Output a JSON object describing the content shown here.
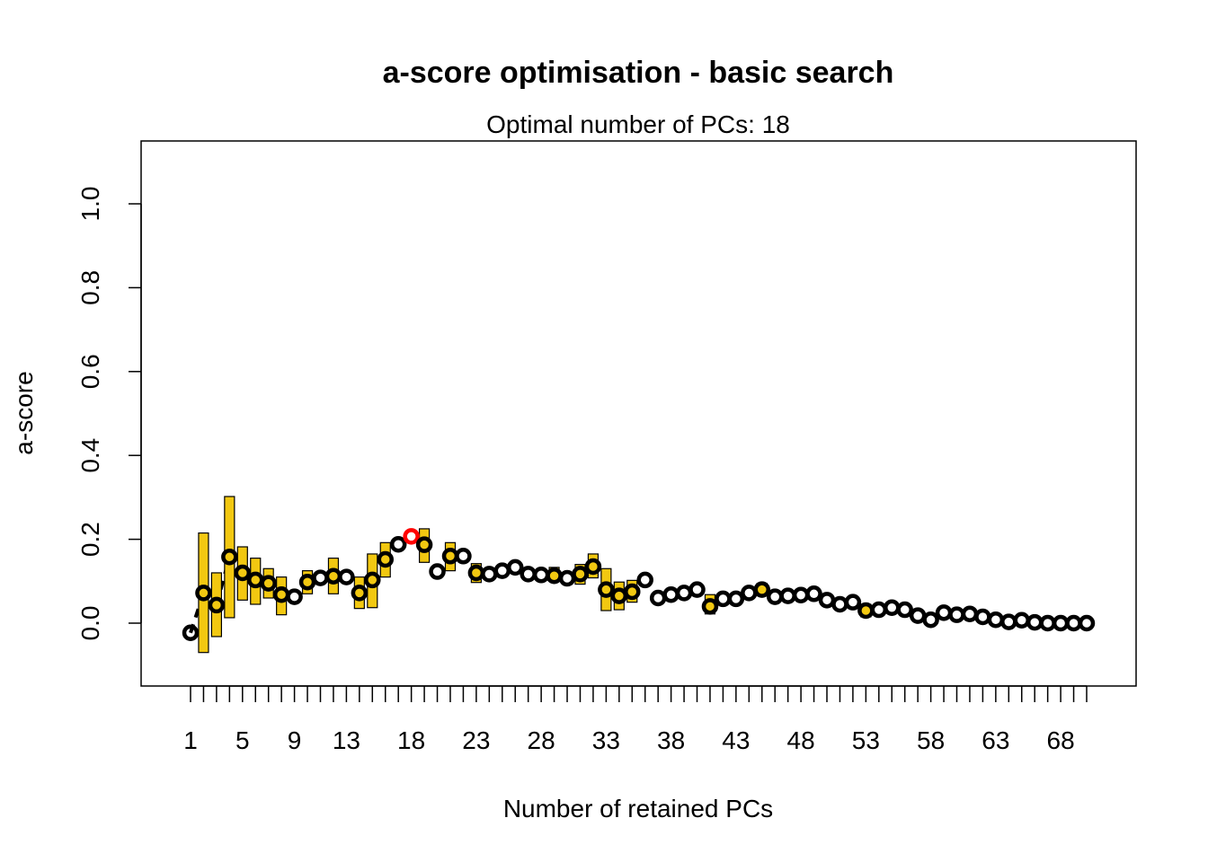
{
  "chart_data": {
    "type": "scatter",
    "title": "a-score optimisation - basic search",
    "subtitle": "Optimal number of PCs: 18",
    "xlabel": "Number of retained PCs",
    "ylabel": "a-score",
    "xlim": [
      1,
      70
    ],
    "ylim": [
      -0.14,
      1.15
    ],
    "x_tick_labels": [
      1,
      5,
      9,
      13,
      18,
      23,
      28,
      33,
      38,
      43,
      48,
      53,
      58,
      63,
      68
    ],
    "y_ticks": [
      0.0,
      0.2,
      0.4,
      0.6,
      0.8,
      1.0
    ],
    "y_tick_labels": [
      "0.0",
      "0.2",
      "0.4",
      "0.6",
      "0.8",
      "1.0"
    ],
    "grid": false,
    "highlight_x": 18,
    "colors": {
      "box_fill": "#F2C811",
      "point": "#000000",
      "highlight": "#FF0000"
    },
    "series": [
      {
        "x": [
          1,
          2,
          3,
          4,
          5,
          6,
          7,
          8,
          9,
          10,
          11,
          12,
          13,
          14,
          15,
          16,
          17,
          18,
          19,
          20,
          21,
          22,
          23,
          24,
          25,
          26,
          27,
          28,
          29,
          30,
          31,
          32,
          33,
          34,
          35,
          36,
          37,
          38,
          39,
          40,
          41,
          42,
          43,
          44,
          45,
          46,
          47,
          48,
          49,
          50,
          51,
          52,
          53,
          54,
          55,
          56,
          57,
          58,
          59,
          60,
          61,
          62,
          63,
          64,
          65,
          66,
          67,
          68,
          69,
          70
        ],
        "values": [
          -0.023,
          0.072,
          0.043,
          0.158,
          0.12,
          0.103,
          0.095,
          0.068,
          0.063,
          0.098,
          0.108,
          0.112,
          0.11,
          0.072,
          0.103,
          0.152,
          0.188,
          0.207,
          0.187,
          0.123,
          0.16,
          0.16,
          0.12,
          0.117,
          0.125,
          0.133,
          0.117,
          0.115,
          0.113,
          0.107,
          0.117,
          0.135,
          0.08,
          0.065,
          0.075,
          0.103,
          0.06,
          0.068,
          0.072,
          0.08,
          0.04,
          0.058,
          0.058,
          0.072,
          0.08,
          0.063,
          0.065,
          0.067,
          0.07,
          0.055,
          0.045,
          0.05,
          0.03,
          0.032,
          0.037,
          0.032,
          0.018,
          0.008,
          0.025,
          0.02,
          0.022,
          0.015,
          0.008,
          0.003,
          0.007,
          0.002,
          0.0,
          0.0,
          0.0,
          0.0
        ],
        "box_low": [
          null,
          -0.07,
          -0.032,
          0.013,
          0.055,
          0.045,
          0.06,
          0.02,
          null,
          0.07,
          null,
          0.07,
          null,
          0.035,
          0.037,
          0.11,
          null,
          null,
          0.145,
          null,
          0.125,
          null,
          0.097,
          null,
          null,
          null,
          null,
          null,
          0.1,
          null,
          0.093,
          0.108,
          0.03,
          0.032,
          0.05,
          null,
          null,
          null,
          null,
          null,
          0.022,
          null,
          null,
          null,
          0.068,
          null,
          null,
          null,
          null,
          null,
          null,
          null,
          0.015,
          null,
          null,
          null,
          null,
          null,
          null,
          null,
          null,
          null,
          null,
          null,
          null,
          null,
          null,
          null,
          null,
          null
        ],
        "box_high": [
          null,
          0.215,
          0.12,
          0.302,
          0.182,
          0.155,
          0.13,
          0.11,
          null,
          0.125,
          null,
          0.155,
          null,
          0.11,
          0.165,
          0.192,
          null,
          null,
          0.225,
          null,
          0.192,
          null,
          0.142,
          null,
          null,
          null,
          null,
          null,
          0.133,
          null,
          0.14,
          0.165,
          0.13,
          0.098,
          0.102,
          null,
          null,
          null,
          null,
          null,
          0.068,
          null,
          null,
          null,
          0.095,
          null,
          null,
          null,
          null,
          null,
          null,
          null,
          0.045,
          null,
          null,
          null,
          null,
          null,
          null,
          null,
          null,
          null,
          null,
          null,
          null,
          null,
          null,
          null,
          null,
          null
        ]
      }
    ]
  }
}
